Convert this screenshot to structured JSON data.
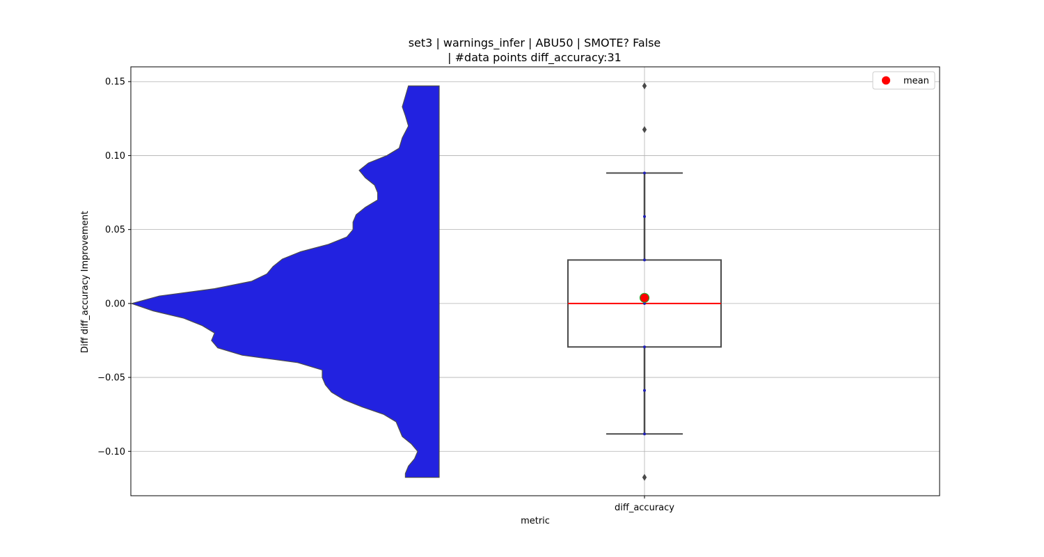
{
  "chart_data": {
    "type": "violin-box",
    "title_lines": [
      "set3 | warnings_infer | ABU50 | SMOTE? False",
      "| #data points diff_accuracy:31"
    ],
    "xlabel": "metric",
    "ylabel": "Diff diff_accuracy Improvement",
    "categories": [
      "diff_accuracy"
    ],
    "ylim": [
      -0.13,
      0.16
    ],
    "yticks": [
      -0.1,
      -0.05,
      0.0,
      0.05,
      0.1,
      0.15
    ],
    "ytick_labels": [
      "−0.10",
      "−0.05",
      "0.00",
      "0.05",
      "0.10",
      "0.15"
    ],
    "grid": true,
    "violin": {
      "color": "#2222e0",
      "side": "left",
      "y_range": [
        -0.1176,
        0.1471
      ],
      "density_profile": [
        [
          0.1471,
          0.1
        ],
        [
          0.14,
          0.11
        ],
        [
          0.133,
          0.12
        ],
        [
          0.127,
          0.11
        ],
        [
          0.12,
          0.1
        ],
        [
          0.112,
          0.12
        ],
        [
          0.105,
          0.13
        ],
        [
          0.1,
          0.17
        ],
        [
          0.095,
          0.23
        ],
        [
          0.09,
          0.26
        ],
        [
          0.085,
          0.24
        ],
        [
          0.08,
          0.21
        ],
        [
          0.075,
          0.2
        ],
        [
          0.07,
          0.2
        ],
        [
          0.065,
          0.24
        ],
        [
          0.06,
          0.27
        ],
        [
          0.055,
          0.28
        ],
        [
          0.05,
          0.28
        ],
        [
          0.045,
          0.3
        ],
        [
          0.04,
          0.36
        ],
        [
          0.035,
          0.45
        ],
        [
          0.03,
          0.51
        ],
        [
          0.025,
          0.54
        ],
        [
          0.02,
          0.56
        ],
        [
          0.015,
          0.61
        ],
        [
          0.01,
          0.73
        ],
        [
          0.005,
          0.91
        ],
        [
          0.0,
          1.0
        ],
        [
          -0.005,
          0.93
        ],
        [
          -0.01,
          0.83
        ],
        [
          -0.015,
          0.77
        ],
        [
          -0.02,
          0.73
        ],
        [
          -0.025,
          0.74
        ],
        [
          -0.03,
          0.72
        ],
        [
          -0.035,
          0.64
        ],
        [
          -0.04,
          0.46
        ],
        [
          -0.045,
          0.38
        ],
        [
          -0.05,
          0.38
        ],
        [
          -0.055,
          0.37
        ],
        [
          -0.06,
          0.35
        ],
        [
          -0.065,
          0.31
        ],
        [
          -0.07,
          0.25
        ],
        [
          -0.075,
          0.18
        ],
        [
          -0.08,
          0.14
        ],
        [
          -0.085,
          0.13
        ],
        [
          -0.09,
          0.12
        ],
        [
          -0.095,
          0.09
        ],
        [
          -0.1,
          0.07
        ],
        [
          -0.105,
          0.08
        ],
        [
          -0.11,
          0.1
        ],
        [
          -0.115,
          0.11
        ],
        [
          -0.1176,
          0.11
        ]
      ]
    },
    "box": {
      "q1": -0.0294,
      "median": 0.0,
      "q3": 0.0294,
      "whisker_low": -0.0882,
      "whisker_high": 0.0882,
      "median_color": "#ff0000"
    },
    "points": [
      -0.0882,
      -0.0588,
      -0.0294,
      0.0,
      0.0294,
      0.0588,
      0.0882
    ],
    "outliers": [
      0.1471,
      0.1176,
      -0.1176
    ],
    "mean": {
      "value": 0.0038,
      "color": "#ff0000",
      "edge_color": "#2ca02c"
    },
    "legend": {
      "position": "top-right",
      "entries": [
        "mean"
      ]
    }
  }
}
